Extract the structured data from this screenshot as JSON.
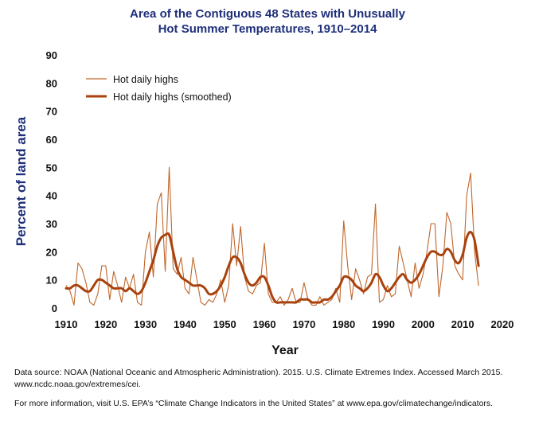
{
  "chart_data": {
    "type": "line",
    "title_lines": [
      "Area of the Contiguous 48 States with Unusually",
      "Hot Summer Temperatures, 1910–2014"
    ],
    "xlabel": "Year",
    "ylabel": "Percent of land area",
    "xlim": [
      1910,
      2020
    ],
    "ylim": [
      0,
      90
    ],
    "xticks": [
      "1910",
      "1920",
      "1930",
      "1940",
      "1950",
      "1960",
      "1970",
      "1980",
      "1990",
      "2000",
      "2010",
      "2020"
    ],
    "yticks": [
      "0",
      "10",
      "20",
      "30",
      "40",
      "50",
      "60",
      "70",
      "80",
      "90"
    ],
    "grid": false,
    "legend_position": "top-left",
    "series": [
      {
        "name": "Hot daily highs",
        "color": "#c0662a",
        "style": "thin",
        "x": [
          1910,
          1911,
          1912,
          1913,
          1914,
          1915,
          1916,
          1917,
          1918,
          1919,
          1920,
          1921,
          1922,
          1923,
          1924,
          1925,
          1926,
          1927,
          1928,
          1929,
          1930,
          1931,
          1932,
          1933,
          1934,
          1935,
          1936,
          1937,
          1938,
          1939,
          1940,
          1941,
          1942,
          1943,
          1944,
          1945,
          1946,
          1947,
          1948,
          1949,
          1950,
          1951,
          1952,
          1953,
          1954,
          1955,
          1956,
          1957,
          1958,
          1959,
          1960,
          1961,
          1962,
          1963,
          1964,
          1965,
          1966,
          1967,
          1968,
          1969,
          1970,
          1971,
          1972,
          1973,
          1974,
          1975,
          1976,
          1977,
          1978,
          1979,
          1980,
          1981,
          1982,
          1983,
          1984,
          1985,
          1986,
          1987,
          1988,
          1989,
          1990,
          1991,
          1992,
          1993,
          1994,
          1995,
          1996,
          1997,
          1998,
          1999,
          2000,
          2001,
          2002,
          2003,
          2004,
          2005,
          2006,
          2007,
          2008,
          2009,
          2010,
          2011,
          2012,
          2013,
          2014
        ],
        "values": [
          8,
          6,
          1,
          16,
          14,
          9,
          2,
          1,
          5,
          15,
          15,
          3,
          13,
          8,
          2,
          11,
          7,
          12,
          2,
          1,
          20,
          27,
          11,
          37,
          41,
          13,
          50,
          14,
          12,
          18,
          7,
          5,
          18,
          10,
          2,
          1,
          3,
          2,
          5,
          10,
          2,
          8,
          30,
          15,
          29,
          11,
          6,
          5,
          8,
          9,
          23,
          5,
          2,
          2,
          4,
          1,
          3,
          7,
          2,
          2,
          9,
          3,
          1,
          1,
          4,
          1,
          2,
          3,
          7,
          2,
          31,
          15,
          3,
          14,
          10,
          5,
          11,
          12,
          37,
          2,
          3,
          8,
          4,
          5,
          22,
          16,
          10,
          4,
          16,
          7,
          12,
          20,
          30,
          30,
          4,
          15,
          34,
          30,
          15,
          12,
          10,
          40,
          48,
          20,
          8
        ]
      },
      {
        "name": "Hot daily highs (smoothed)",
        "color": "#a8420f",
        "style": "thick",
        "x": [
          1910,
          1911,
          1912,
          1913,
          1914,
          1915,
          1916,
          1917,
          1918,
          1919,
          1920,
          1921,
          1922,
          1923,
          1924,
          1925,
          1926,
          1927,
          1928,
          1929,
          1930,
          1931,
          1932,
          1933,
          1934,
          1935,
          1936,
          1937,
          1938,
          1939,
          1940,
          1941,
          1942,
          1943,
          1944,
          1945,
          1946,
          1947,
          1948,
          1949,
          1950,
          1951,
          1952,
          1953,
          1954,
          1955,
          1956,
          1957,
          1958,
          1959,
          1960,
          1961,
          1962,
          1963,
          1964,
          1965,
          1966,
          1967,
          1968,
          1969,
          1970,
          1971,
          1972,
          1973,
          1974,
          1975,
          1976,
          1977,
          1978,
          1979,
          1980,
          1981,
          1982,
          1983,
          1984,
          1985,
          1986,
          1987,
          1988,
          1989,
          1990,
          1991,
          1992,
          1993,
          1994,
          1995,
          1996,
          1997,
          1998,
          1999,
          2000,
          2001,
          2002,
          2003,
          2004,
          2005,
          2006,
          2007,
          2008,
          2009,
          2010,
          2011,
          2012,
          2013,
          2014
        ],
        "values": [
          7,
          7,
          8,
          8,
          7,
          6,
          6,
          8,
          10,
          10,
          9,
          8,
          7,
          7,
          7,
          6,
          7,
          6,
          5,
          6,
          9,
          13,
          17,
          22,
          25,
          26,
          26,
          20,
          14,
          11,
          10,
          9,
          8,
          8,
          8,
          7,
          5,
          5,
          6,
          8,
          11,
          15,
          18,
          18,
          16,
          12,
          9,
          8,
          9,
          11,
          11,
          8,
          4,
          2,
          2,
          2,
          2,
          2,
          2,
          3,
          3,
          3,
          2,
          2,
          2,
          3,
          3,
          4,
          6,
          8,
          11,
          11,
          10,
          8,
          7,
          6,
          7,
          9,
          12,
          11,
          8,
          6,
          7,
          9,
          11,
          12,
          10,
          9,
          10,
          12,
          15,
          18,
          20,
          20,
          19,
          19,
          21,
          20,
          17,
          16,
          19,
          25,
          27,
          24,
          15
        ]
      }
    ]
  },
  "footer": {
    "source_line1": "Data source: NOAA (National Oceanic and Atmospheric Administration). 2015. U.S. Climate Extremes Index. Accessed March 2015.",
    "source_line2": "www.ncdc.noaa.gov/extremes/cei.",
    "more_info": "For more information, visit U.S. EPA’s “Climate Change Indicators in the United States” at www.epa.gov/climatechange/indicators."
  }
}
